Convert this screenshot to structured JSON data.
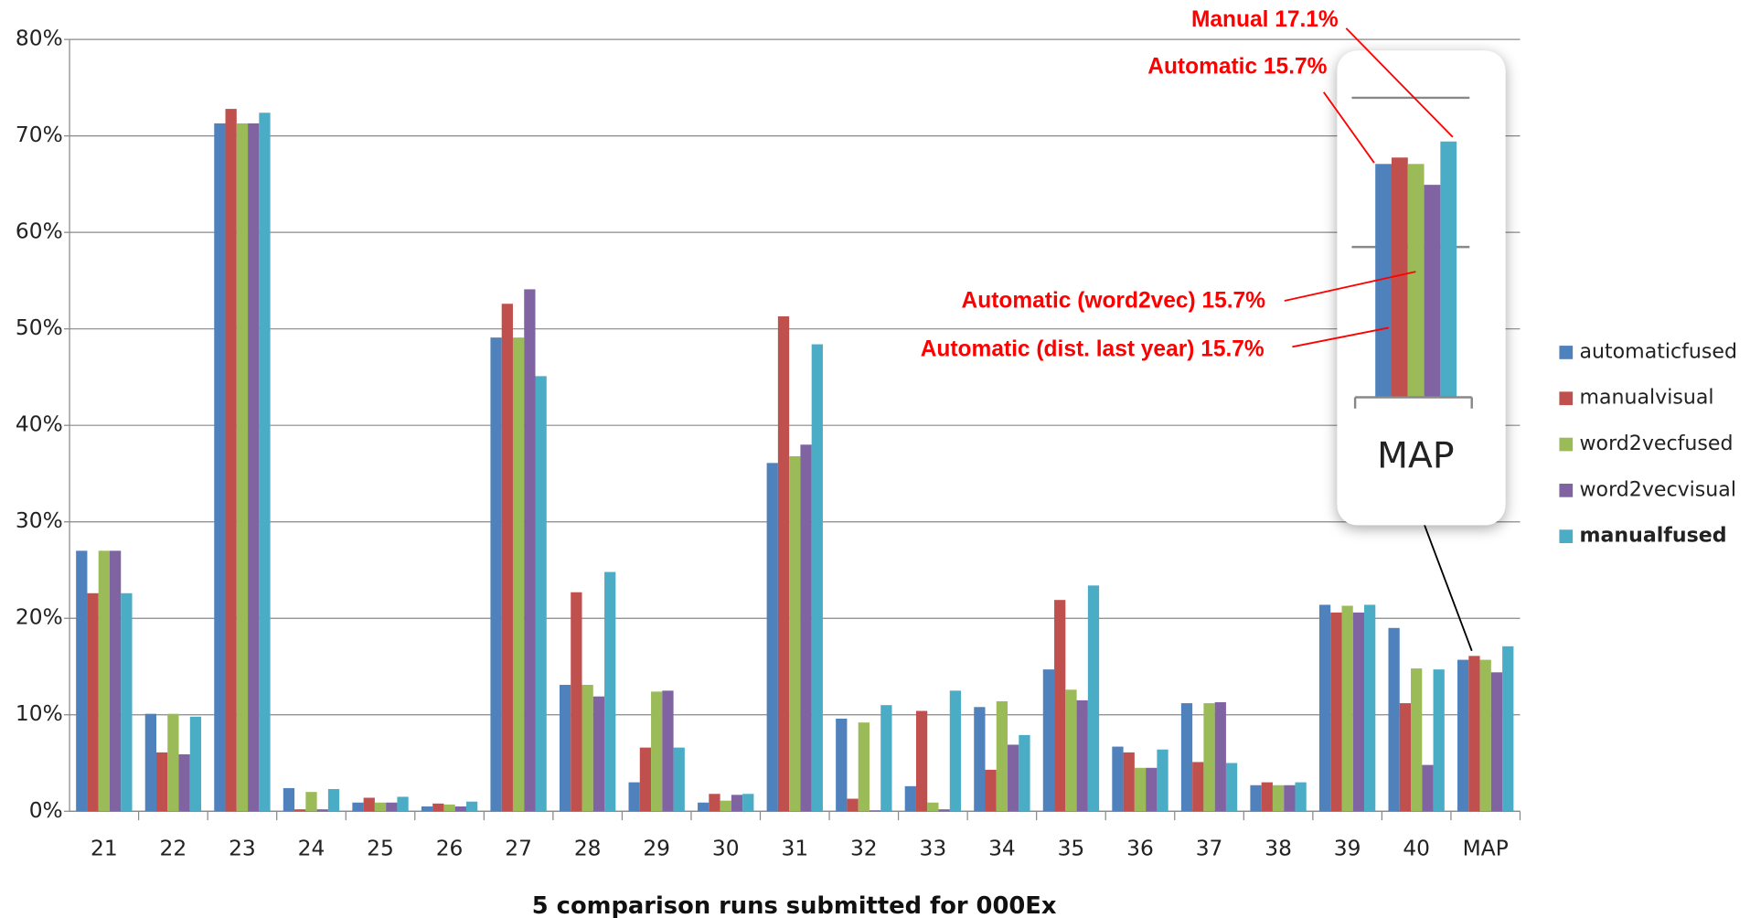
{
  "chart_data": {
    "type": "bar",
    "xlabel": "5 comparison runs submitted for 000Ex",
    "categories": [
      "21",
      "22",
      "23",
      "24",
      "25",
      "26",
      "27",
      "28",
      "29",
      "30",
      "31",
      "32",
      "33",
      "34",
      "35",
      "36",
      "37",
      "38",
      "39",
      "40",
      "MAP"
    ],
    "series": [
      {
        "name": "automaticfused",
        "color": "#4f81bd",
        "values": [
          27,
          10.1,
          71.3,
          2.4,
          0.9,
          0.5,
          49.1,
          13.1,
          3.0,
          0.9,
          36.1,
          9.6,
          2.6,
          10.8,
          14.7,
          6.7,
          11.2,
          2.7,
          21.4,
          19.0,
          15.7
        ]
      },
      {
        "name": "manualvisual",
        "color": "#c0504d",
        "values": [
          22.6,
          6.1,
          72.8,
          0.2,
          1.4,
          0.8,
          52.6,
          22.7,
          6.6,
          1.8,
          51.3,
          1.3,
          10.4,
          4.3,
          21.9,
          6.1,
          5.1,
          3.0,
          20.6,
          11.2,
          16.1
        ]
      },
      {
        "name": "word2vecfused",
        "color": "#9bbb59",
        "values": [
          27,
          10.1,
          71.3,
          2.0,
          0.9,
          0.7,
          49.1,
          13.1,
          12.4,
          1.1,
          36.8,
          9.2,
          0.9,
          11.4,
          12.6,
          4.5,
          11.2,
          2.7,
          21.3,
          14.8,
          15.7
        ]
      },
      {
        "name": "word2vecvisual",
        "color": "#8064a2",
        "values": [
          27,
          5.9,
          71.3,
          0.2,
          0.9,
          0.5,
          54.1,
          11.9,
          12.5,
          1.7,
          38.0,
          0.1,
          0.2,
          6.9,
          11.5,
          4.5,
          11.3,
          2.7,
          20.6,
          4.8,
          14.4
        ]
      },
      {
        "name": "manualfused",
        "color": "#4bacc6",
        "bold": true,
        "values": [
          22.6,
          9.8,
          72.4,
          2.3,
          1.5,
          1.0,
          45.1,
          24.8,
          6.6,
          1.8,
          48.4,
          11.0,
          12.5,
          7.9,
          23.4,
          6.4,
          5.0,
          3.0,
          21.4,
          14.7,
          17.1
        ]
      }
    ],
    "ylim": [
      0,
      80
    ],
    "yticks": [
      {
        "value": 0,
        "label": "0%"
      },
      {
        "value": 10,
        "label": "10%"
      },
      {
        "value": 20,
        "label": "20%"
      },
      {
        "value": 30,
        "label": "30%"
      },
      {
        "value": 40,
        "label": "40%"
      },
      {
        "value": 50,
        "label": "50%"
      },
      {
        "value": 60,
        "label": "60%"
      },
      {
        "value": 70,
        "label": "70%"
      },
      {
        "value": 80,
        "label": "80%"
      }
    ],
    "grid": true,
    "legend": "right",
    "annotations": [
      "Manual 17.1%",
      "Automatic 15.7%",
      "Automatic (word2vec) 15.7%",
      "Automatic (dist. last year) 15.7%"
    ]
  }
}
